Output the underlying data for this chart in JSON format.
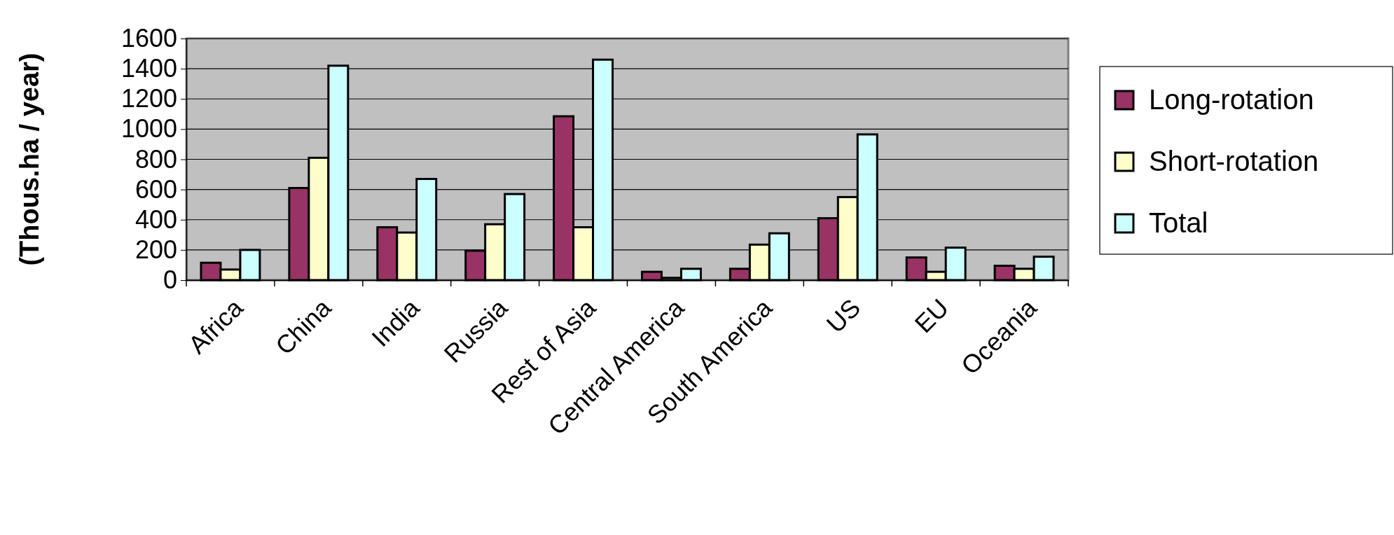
{
  "chart_data": {
    "type": "bar",
    "ylabel": "(Thous.ha / year)",
    "categories": [
      "Africa",
      "China",
      "India",
      "Russia",
      "Rest of Asia",
      "Central America",
      "South America",
      "US",
      "EU",
      "Oceania"
    ],
    "series": [
      {
        "name": "Long-rotation",
        "color": "#993366",
        "values": [
          115,
          610,
          350,
          195,
          1085,
          55,
          75,
          410,
          150,
          95
        ]
      },
      {
        "name": "Short-rotation",
        "color": "#ffffcc",
        "values": [
          70,
          810,
          315,
          370,
          350,
          15,
          235,
          550,
          55,
          75
        ]
      },
      {
        "name": "Total",
        "color": "#ccffff",
        "values": [
          200,
          1420,
          670,
          570,
          1460,
          75,
          310,
          965,
          215,
          155
        ]
      }
    ],
    "ylim": [
      0,
      1600
    ],
    "yticks": [
      0,
      200,
      400,
      600,
      800,
      1000,
      1200,
      1400,
      1600
    ],
    "grid": "y",
    "legend": "right"
  }
}
